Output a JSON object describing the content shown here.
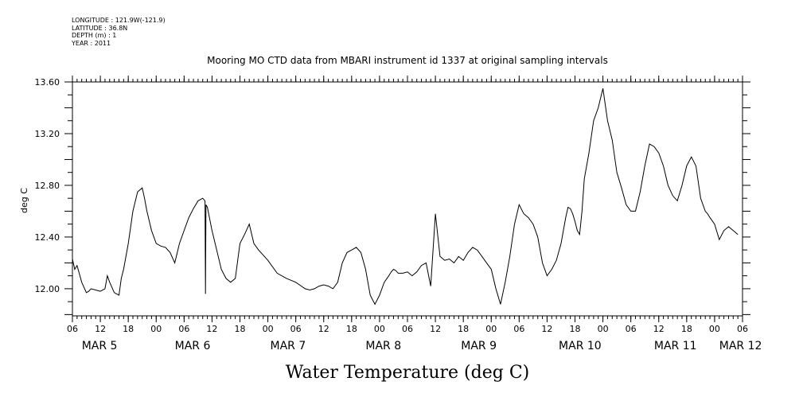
{
  "header": {
    "longitude": "LONGITUDE : 121.9W(-121.9)",
    "latitude": "LATITUDE : 36.8N",
    "depth": "DEPTH (m) : 1",
    "year": "YEAR : 2011"
  },
  "chart_data": {
    "type": "line",
    "title": "Mooring MO CTD data from MBARI instrument id 1337 at original sampling intervals",
    "xlabel": "Water Temperature (deg C)",
    "ylabel": "deg C",
    "ylim": [
      11.79,
      13.6
    ],
    "yticks": [
      12.0,
      12.4,
      12.8,
      13.2,
      13.6
    ],
    "ytick_labels": [
      "12.00",
      "12.40",
      "12.80",
      "13.20",
      "13.60"
    ],
    "x_unit": "hours since 2011-03-05 00:00",
    "xlim": [
      6,
      150
    ],
    "hour_ticks": [
      {
        "h": 6,
        "label": "06"
      },
      {
        "h": 12,
        "label": "12"
      },
      {
        "h": 18,
        "label": "18"
      },
      {
        "h": 24,
        "label": "00"
      },
      {
        "h": 30,
        "label": "06"
      },
      {
        "h": 36,
        "label": "12"
      },
      {
        "h": 42,
        "label": "18"
      },
      {
        "h": 48,
        "label": "00"
      },
      {
        "h": 54,
        "label": "06"
      },
      {
        "h": 60,
        "label": "12"
      },
      {
        "h": 66,
        "label": "18"
      },
      {
        "h": 72,
        "label": "00"
      },
      {
        "h": 78,
        "label": "06"
      },
      {
        "h": 84,
        "label": "12"
      },
      {
        "h": 90,
        "label": "18"
      },
      {
        "h": 96,
        "label": "00"
      },
      {
        "h": 102,
        "label": "06"
      },
      {
        "h": 108,
        "label": "12"
      },
      {
        "h": 114,
        "label": "18"
      },
      {
        "h": 120,
        "label": "00"
      },
      {
        "h": 126,
        "label": "06"
      },
      {
        "h": 132,
        "label": "12"
      },
      {
        "h": 138,
        "label": "18"
      },
      {
        "h": 144,
        "label": "00"
      },
      {
        "h": 150,
        "label": "06"
      }
    ],
    "date_labels": [
      {
        "h": 8,
        "label": "MAR 5"
      },
      {
        "h": 28,
        "label": "MAR 6"
      },
      {
        "h": 48.5,
        "label": "MAR 7"
      },
      {
        "h": 69,
        "label": "MAR 8"
      },
      {
        "h": 89.5,
        "label": "MAR 9"
      },
      {
        "h": 110.5,
        "label": "MAR 10"
      },
      {
        "h": 131,
        "label": "MAR 11"
      },
      {
        "h": 145,
        "label": "MAR 12"
      }
    ],
    "series": [
      {
        "x": [
          6,
          6.5,
          7,
          8,
          9,
          9.5,
          10,
          11,
          12,
          13,
          13.5,
          14,
          15,
          16,
          16.5,
          17,
          18,
          19,
          20,
          21,
          21.5,
          22,
          23,
          24,
          25,
          26,
          27,
          28,
          29,
          30,
          31,
          32,
          33,
          34,
          34.5,
          34.6,
          34.7,
          35,
          36,
          37,
          38,
          39,
          40,
          41,
          42,
          43,
          44,
          45,
          46,
          48,
          50,
          52,
          54,
          56,
          57,
          58,
          59,
          60,
          61,
          62,
          63,
          64,
          65,
          66,
          67,
          68,
          69,
          69.5,
          70,
          71,
          72,
          73,
          74,
          74.5,
          75,
          75.5,
          76,
          77,
          78,
          79,
          80,
          81,
          82,
          83,
          84,
          85,
          86,
          87,
          88,
          89,
          90,
          91,
          92,
          93,
          94,
          95,
          96,
          97,
          98,
          99,
          100,
          101,
          102,
          103,
          104,
          105,
          106,
          107,
          108,
          109,
          110,
          111,
          112,
          112.5,
          113,
          113.5,
          114,
          114.5,
          115,
          115.5,
          116,
          117,
          118,
          119,
          120,
          121,
          122,
          123,
          124,
          125,
          126,
          127,
          128,
          129,
          130,
          131,
          132,
          133,
          134,
          135,
          136,
          137,
          138,
          139,
          140,
          141,
          142,
          142.5,
          143,
          144,
          145,
          146,
          147,
          148,
          149
        ],
        "y": [
          12.23,
          12.15,
          12.18,
          12.05,
          11.97,
          11.98,
          12.0,
          11.99,
          11.98,
          12.0,
          12.1,
          12.05,
          11.97,
          11.95,
          12.08,
          12.15,
          12.35,
          12.6,
          12.75,
          12.78,
          12.7,
          12.6,
          12.45,
          12.35,
          12.33,
          12.32,
          12.28,
          12.2,
          12.35,
          12.45,
          12.55,
          12.62,
          12.68,
          12.7,
          12.68,
          11.96,
          12.65,
          12.63,
          12.45,
          12.3,
          12.15,
          12.08,
          12.05,
          12.08,
          12.35,
          12.42,
          12.5,
          12.35,
          12.3,
          12.22,
          12.12,
          12.08,
          12.05,
          12.0,
          11.99,
          12.0,
          12.02,
          12.03,
          12.02,
          12.0,
          12.05,
          12.2,
          12.28,
          12.3,
          12.32,
          12.28,
          12.15,
          12.05,
          11.95,
          11.88,
          11.95,
          12.05,
          12.1,
          12.13,
          12.15,
          12.14,
          12.12,
          12.12,
          12.13,
          12.1,
          12.13,
          12.18,
          12.2,
          12.02,
          12.58,
          12.25,
          12.22,
          12.23,
          12.2,
          12.25,
          12.22,
          12.28,
          12.32,
          12.3,
          12.25,
          12.2,
          12.15,
          12.0,
          11.88,
          12.05,
          12.25,
          12.5,
          12.65,
          12.58,
          12.55,
          12.5,
          12.4,
          12.2,
          12.1,
          12.15,
          12.22,
          12.35,
          12.55,
          12.63,
          12.62,
          12.58,
          12.52,
          12.45,
          12.42,
          12.6,
          12.85,
          13.05,
          13.3,
          13.4,
          13.55,
          13.3,
          13.15,
          12.9,
          12.78,
          12.65,
          12.6,
          12.6,
          12.75,
          12.95,
          13.12,
          13.1,
          13.05,
          12.95,
          12.8,
          12.72,
          12.68,
          12.8,
          12.95,
          13.02,
          12.95,
          12.7,
          12.6,
          12.58,
          12.55,
          12.5,
          12.38,
          12.45,
          12.48,
          12.45,
          12.42
        ]
      }
    ]
  }
}
